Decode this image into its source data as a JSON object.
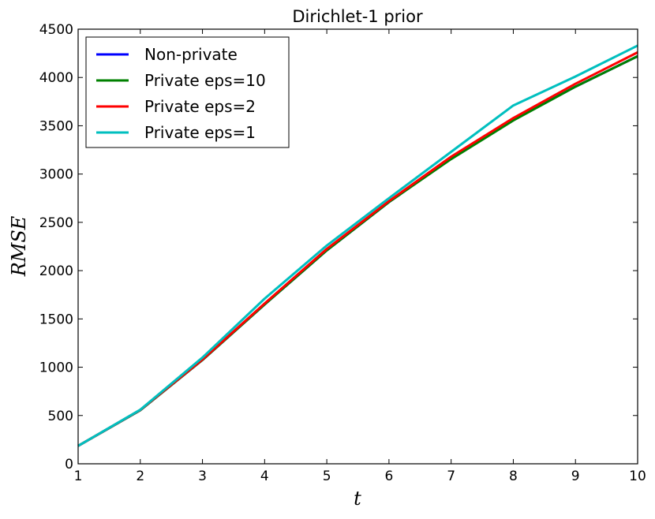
{
  "chart_data": {
    "type": "line",
    "title": "Dirichlet-1 prior",
    "xlabel": "t",
    "ylabel": "RMSE",
    "xlim": [
      1,
      10
    ],
    "ylim": [
      0,
      4500
    ],
    "xticks": [
      1,
      2,
      3,
      4,
      5,
      6,
      7,
      8,
      9,
      10
    ],
    "yticks": [
      0,
      500,
      1000,
      1500,
      2000,
      2500,
      3000,
      3500,
      4000,
      4500
    ],
    "grid": false,
    "legend_position": "top-left",
    "x": [
      1,
      2,
      3,
      4,
      5,
      6,
      7,
      8,
      9,
      10
    ],
    "series": [
      {
        "name": "Non-private",
        "color": "#0000ff",
        "values": [
          185,
          555,
          1075,
          1650,
          2210,
          2710,
          3160,
          3560,
          3905,
          4220
        ]
      },
      {
        "name": "Private eps=10",
        "color": "#008000",
        "values": [
          185,
          555,
          1075,
          1650,
          2210,
          2710,
          3155,
          3555,
          3905,
          4220
        ]
      },
      {
        "name": "Private eps=2",
        "color": "#ff0000",
        "values": [
          185,
          558,
          1080,
          1660,
          2225,
          2720,
          3180,
          3580,
          3935,
          4260
        ]
      },
      {
        "name": "Private eps=1",
        "color": "#00bfbf",
        "values": [
          185,
          560,
          1100,
          1710,
          2260,
          2750,
          3230,
          3710,
          4010,
          4330
        ]
      }
    ]
  }
}
